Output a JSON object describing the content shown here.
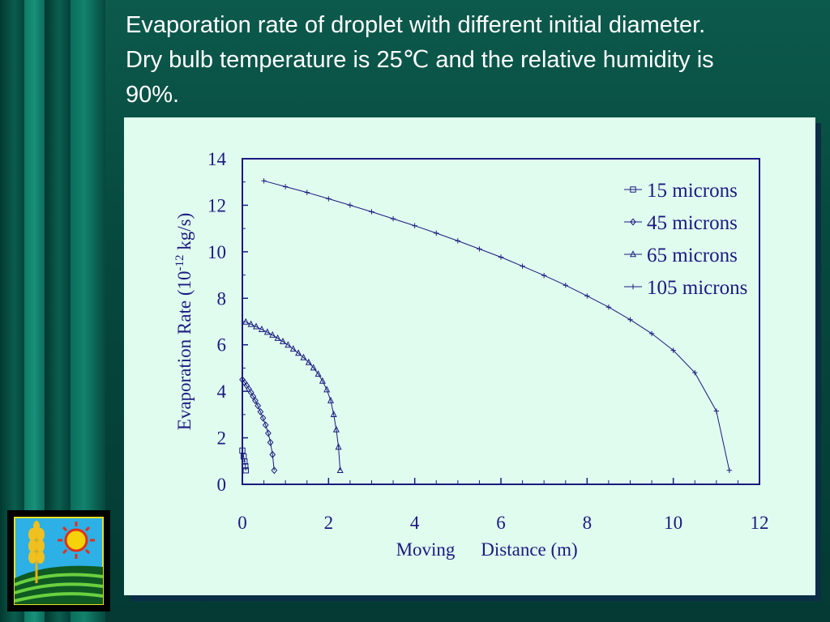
{
  "slide": {
    "title_lines": [
      "Evaporation rate of droplet with different initial diameter.",
      "Dry bulb temperature is 25℃ and the relative humidity is",
      "90%."
    ],
    "logo_icon": "sun-and-wheat-field-icon"
  },
  "colors": {
    "background": "#06483e",
    "chart_panel": "#e0fcee",
    "series_color": "#1a1a80",
    "title_text": "#ffffff"
  },
  "chart_data": {
    "type": "line",
    "title": "",
    "xlabel_left": "Moving",
    "xlabel_right": "Distance (m)",
    "ylabel_main": "Evaporation Rate (10",
    "ylabel_sup": "-12",
    "ylabel_end": " kg/s)",
    "xlim": [
      0,
      12
    ],
    "ylim": [
      0,
      14
    ],
    "x_ticks": [
      "0",
      "2",
      "4",
      "6",
      "8",
      "10",
      "12"
    ],
    "y_ticks": [
      "0",
      "2",
      "4",
      "6",
      "8",
      "10",
      "12",
      "14"
    ],
    "grid": false,
    "legend_position": "top-right",
    "series": [
      {
        "name": "15 microns",
        "marker": "square",
        "points": [
          [
            0.0,
            1.45
          ],
          [
            0.03,
            1.2
          ],
          [
            0.05,
            0.98
          ],
          [
            0.07,
            0.78
          ],
          [
            0.08,
            0.6
          ]
        ]
      },
      {
        "name": "45 microns",
        "marker": "diamond",
        "points": [
          [
            0.0,
            4.5
          ],
          [
            0.05,
            4.38
          ],
          [
            0.1,
            4.25
          ],
          [
            0.15,
            4.1
          ],
          [
            0.2,
            3.95
          ],
          [
            0.25,
            3.78
          ],
          [
            0.3,
            3.6
          ],
          [
            0.36,
            3.38
          ],
          [
            0.42,
            3.12
          ],
          [
            0.48,
            2.85
          ],
          [
            0.54,
            2.55
          ],
          [
            0.6,
            2.2
          ],
          [
            0.65,
            1.8
          ],
          [
            0.7,
            1.28
          ],
          [
            0.74,
            0.6
          ]
        ]
      },
      {
        "name": "65 microns",
        "marker": "triangle",
        "points": [
          [
            0.08,
            6.98
          ],
          [
            0.2,
            6.88
          ],
          [
            0.32,
            6.78
          ],
          [
            0.45,
            6.66
          ],
          [
            0.58,
            6.54
          ],
          [
            0.7,
            6.42
          ],
          [
            0.82,
            6.28
          ],
          [
            0.94,
            6.14
          ],
          [
            1.06,
            5.99
          ],
          [
            1.18,
            5.82
          ],
          [
            1.3,
            5.64
          ],
          [
            1.42,
            5.45
          ],
          [
            1.54,
            5.24
          ],
          [
            1.65,
            5.01
          ],
          [
            1.76,
            4.74
          ],
          [
            1.86,
            4.44
          ],
          [
            1.96,
            4.07
          ],
          [
            2.05,
            3.6
          ],
          [
            2.12,
            3.0
          ],
          [
            2.18,
            2.35
          ],
          [
            2.23,
            1.6
          ],
          [
            2.27,
            0.6
          ]
        ]
      },
      {
        "name": "105 microns",
        "marker": "plus",
        "points": [
          [
            0.5,
            13.05
          ],
          [
            1.0,
            12.8
          ],
          [
            1.5,
            12.55
          ],
          [
            2.0,
            12.28
          ],
          [
            2.5,
            12.0
          ],
          [
            3.0,
            11.72
          ],
          [
            3.5,
            11.42
          ],
          [
            4.0,
            11.12
          ],
          [
            4.5,
            10.8
          ],
          [
            5.0,
            10.47
          ],
          [
            5.5,
            10.12
          ],
          [
            6.0,
            9.77
          ],
          [
            6.5,
            9.38
          ],
          [
            7.0,
            8.98
          ],
          [
            7.5,
            8.56
          ],
          [
            8.0,
            8.1
          ],
          [
            8.5,
            7.62
          ],
          [
            9.0,
            7.08
          ],
          [
            9.5,
            6.48
          ],
          [
            10.0,
            5.76
          ],
          [
            10.5,
            4.8
          ],
          [
            11.0,
            3.15
          ],
          [
            11.3,
            0.6
          ]
        ]
      }
    ]
  }
}
